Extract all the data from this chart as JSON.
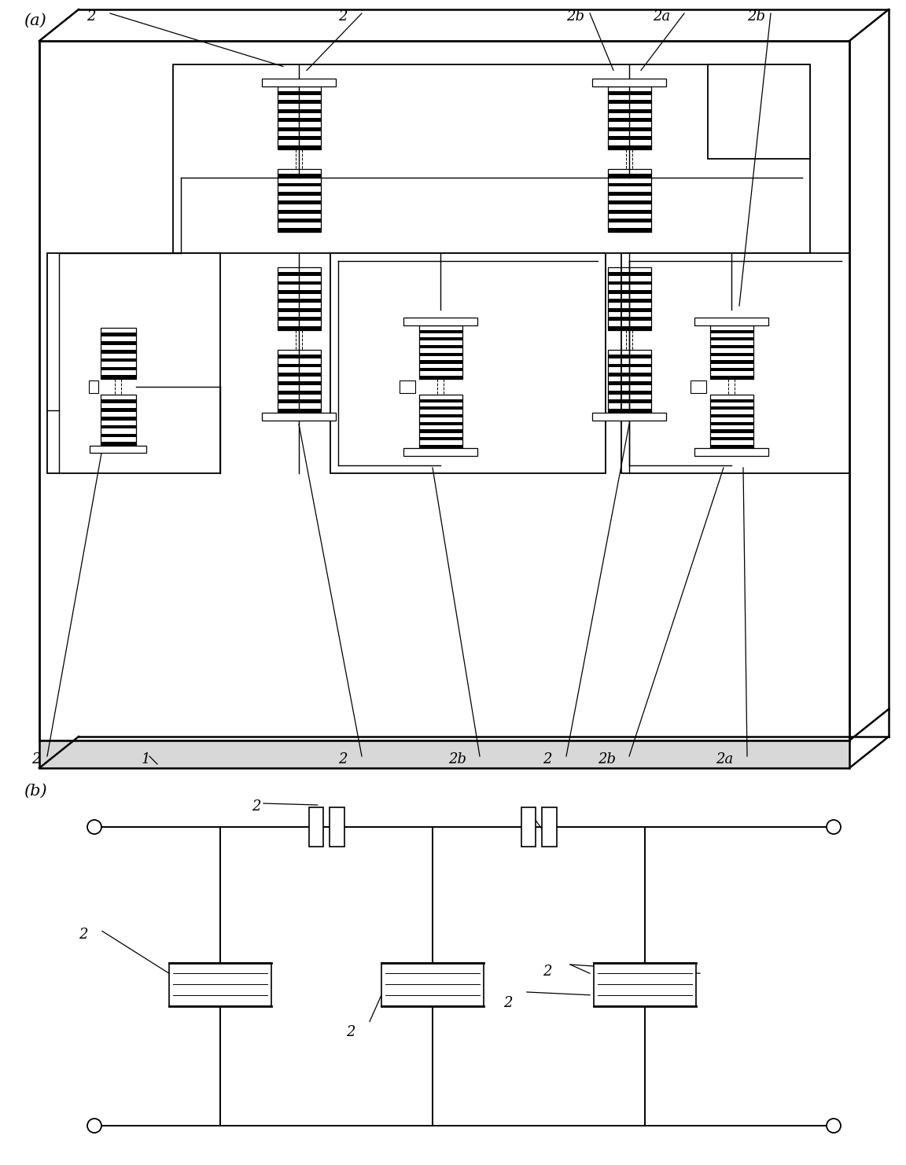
{
  "fig_width": 11.52,
  "fig_height": 14.82,
  "bg_color": "#ffffff",
  "line_color": "#000000",
  "label_a": "(a)",
  "label_b": "(b)",
  "label_1": "1",
  "label_2": "2",
  "label_2a": "2a",
  "label_2b": "2b",
  "fs_label": 15,
  "fs_num": 13
}
